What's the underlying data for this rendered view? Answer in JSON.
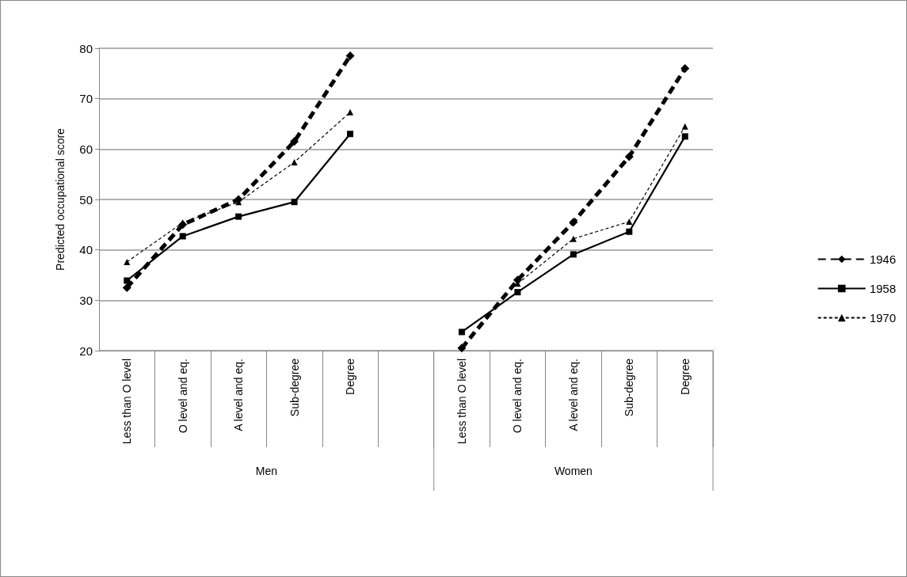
{
  "chart_data": {
    "type": "line",
    "ylabel": "Predicted occupational score",
    "categories": [
      "Less than O level",
      "O level and eq.",
      "A level and eq.",
      "Sub-degree",
      "Degree",
      null,
      "Less than O level",
      "O level and eq.",
      "A level and eq.",
      "Sub-degree",
      "Degree"
    ],
    "annotations": [
      "Men",
      "Women"
    ],
    "series": [
      {
        "name": "1946",
        "color": "#000000",
        "marker": "diamond",
        "line_style": "dashed",
        "values": [
          32.5,
          45,
          50,
          61.5,
          78.5,
          null,
          20.5,
          34,
          45.5,
          58.5,
          76
        ]
      },
      {
        "name": "1958",
        "color": "#000000",
        "marker": "square",
        "line_style": "solid",
        "values": [
          33.9,
          42.7,
          46.6,
          49.5,
          63,
          null,
          23.7,
          31.6,
          39.1,
          43.6,
          62.5
        ]
      },
      {
        "name": "1970",
        "color": "#000000",
        "marker": "triangle",
        "line_style": "dashed",
        "values": [
          37.6,
          45.4,
          49.5,
          57.4,
          67.3,
          null,
          null,
          33.3,
          42.2,
          45.6,
          64.5
        ]
      }
    ],
    "ylim": [
      20,
      80
    ],
    "yticks": [
      20,
      30,
      40,
      50,
      60,
      70,
      80
    ],
    "grid": "y",
    "legend": "right"
  }
}
